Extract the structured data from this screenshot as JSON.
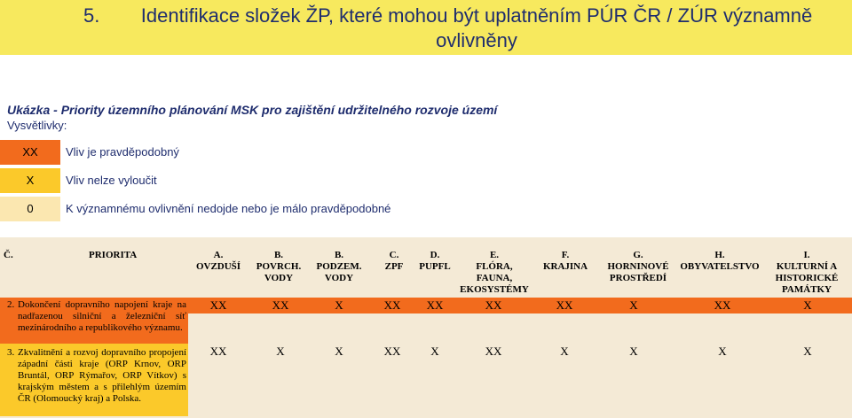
{
  "colors": {
    "dark": "#f26b1d",
    "light": "#fbc92a",
    "none": "#fbe7b0",
    "title_bg": "#f7e95e"
  },
  "title": {
    "number": "5.",
    "text": "Identifikace složek ŽP, které mohou být uplatněním PÚR ČR / ZÚR významně ovlivněny"
  },
  "subtitle": "Ukázka - Priority územního plánování MSK pro zajištění udržitelného rozvoje území",
  "legend": {
    "heading": "Vysvětlivky:",
    "items": [
      {
        "symbol": "XX",
        "text": "Vliv je pravděpodobný",
        "level": "dark"
      },
      {
        "symbol": "X",
        "text": "Vliv nelze vyloučit",
        "level": "light"
      },
      {
        "symbol": "0",
        "text": "K významnému ovlivnění nedojde nebo je málo pravděpodobné",
        "level": "none"
      }
    ]
  },
  "table": {
    "headers": [
      {
        "key": "c",
        "text": "Č."
      },
      {
        "key": "priority",
        "text": "PRIORITA"
      },
      {
        "key": "a",
        "lines": [
          "A.",
          "OVZDUŠÍ"
        ]
      },
      {
        "key": "b1",
        "lines": [
          "B.",
          "POVRCH.",
          "VODY"
        ]
      },
      {
        "key": "b2",
        "lines": [
          "B.",
          "PODZEM.",
          "VODY"
        ]
      },
      {
        "key": "cc",
        "lines": [
          "C.",
          "ZPF"
        ]
      },
      {
        "key": "d",
        "lines": [
          "D.",
          "PUPFL"
        ]
      },
      {
        "key": "e",
        "lines": [
          "E.",
          "FLÓRA,",
          "FAUNA,",
          "EKOSYSTÉMY"
        ]
      },
      {
        "key": "f",
        "lines": [
          "F.",
          "KRAJINA"
        ]
      },
      {
        "key": "g",
        "lines": [
          "G.",
          "HORNINOVÉ",
          "PROSTŘEDÍ"
        ]
      },
      {
        "key": "h",
        "lines": [
          "H.",
          "OBYVATELSTVO"
        ]
      },
      {
        "key": "i",
        "lines": [
          "I.",
          "KULTURNÍ A",
          "HISTORICKÉ",
          "PAMÁTKY"
        ]
      }
    ],
    "rows": [
      {
        "number": "2.",
        "priority": "Dokončení dopravního napojení kraje na nadřazenou silniční a železniční síť mezinárodního a republikového významu.",
        "values": [
          "XX",
          "XX",
          "X",
          "XX",
          "XX",
          "XX",
          "XX",
          "X",
          "XX",
          "X"
        ]
      },
      {
        "number": "3.",
        "priority": "Zkvalitnění a rozvoj dopravního propojení západní části kraje (ORP Krnov, ORP Bruntál, ORP Rýmařov, ORP Vítkov) s krajským městem a s přilehlým územím ČR (Olomoucký kraj) a Polska.",
        "values": [
          "XX",
          "X",
          "X",
          "XX",
          "X",
          "XX",
          "X",
          "X",
          "X",
          "X"
        ]
      }
    ]
  }
}
